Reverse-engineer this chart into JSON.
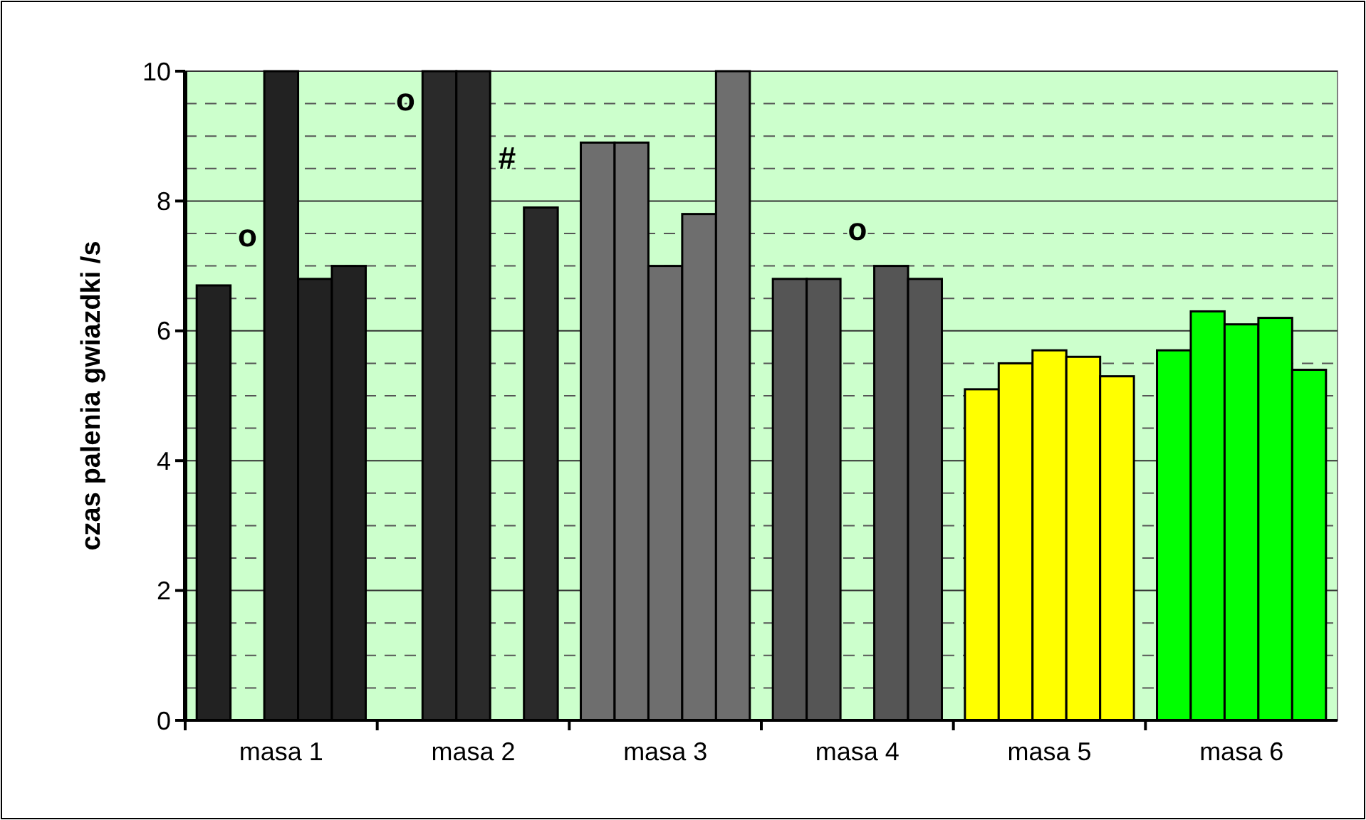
{
  "chart_data": {
    "type": "bar",
    "ylabel": "czas palenia gwiazdki /s",
    "categories": [
      "masa 1",
      "masa 2",
      "masa 3",
      "masa 4",
      "masa 5",
      "masa 6"
    ],
    "series": [
      {
        "values": [
          6.7,
          0,
          8.9,
          6.8,
          5.1,
          5.7
        ],
        "colors": [
          "#222222",
          "#2a2a2a",
          "#6e6e6e",
          "#555555",
          "#ffff00",
          "#00ff00"
        ]
      },
      {
        "values": [
          0,
          10,
          8.9,
          6.8,
          5.5,
          6.3
        ],
        "colors": [
          "#222222",
          "#2a2a2a",
          "#6e6e6e",
          "#555555",
          "#ffff00",
          "#00ff00"
        ]
      },
      {
        "values": [
          10,
          10,
          7.0,
          0,
          5.7,
          6.1
        ],
        "colors": [
          "#222222",
          "#2a2a2a",
          "#6e6e6e",
          "#555555",
          "#ffff00",
          "#00ff00"
        ]
      },
      {
        "values": [
          6.8,
          0,
          7.8,
          7.0,
          5.6,
          6.2
        ],
        "colors": [
          "#222222",
          "#2a2a2a",
          "#6e6e6e",
          "#555555",
          "#ffff00",
          "#00ff00"
        ]
      },
      {
        "values": [
          7.0,
          7.9,
          10,
          6.8,
          5.3,
          5.4
        ],
        "colors": [
          "#222222",
          "#2a2a2a",
          "#6e6e6e",
          "#555555",
          "#ffff00",
          "#00ff00"
        ]
      }
    ],
    "ylim": [
      0,
      10
    ],
    "yticks": [
      0,
      2,
      4,
      6,
      8,
      10
    ],
    "grid": "y",
    "annotations": [
      "o",
      "o",
      "#",
      "o"
    ]
  }
}
